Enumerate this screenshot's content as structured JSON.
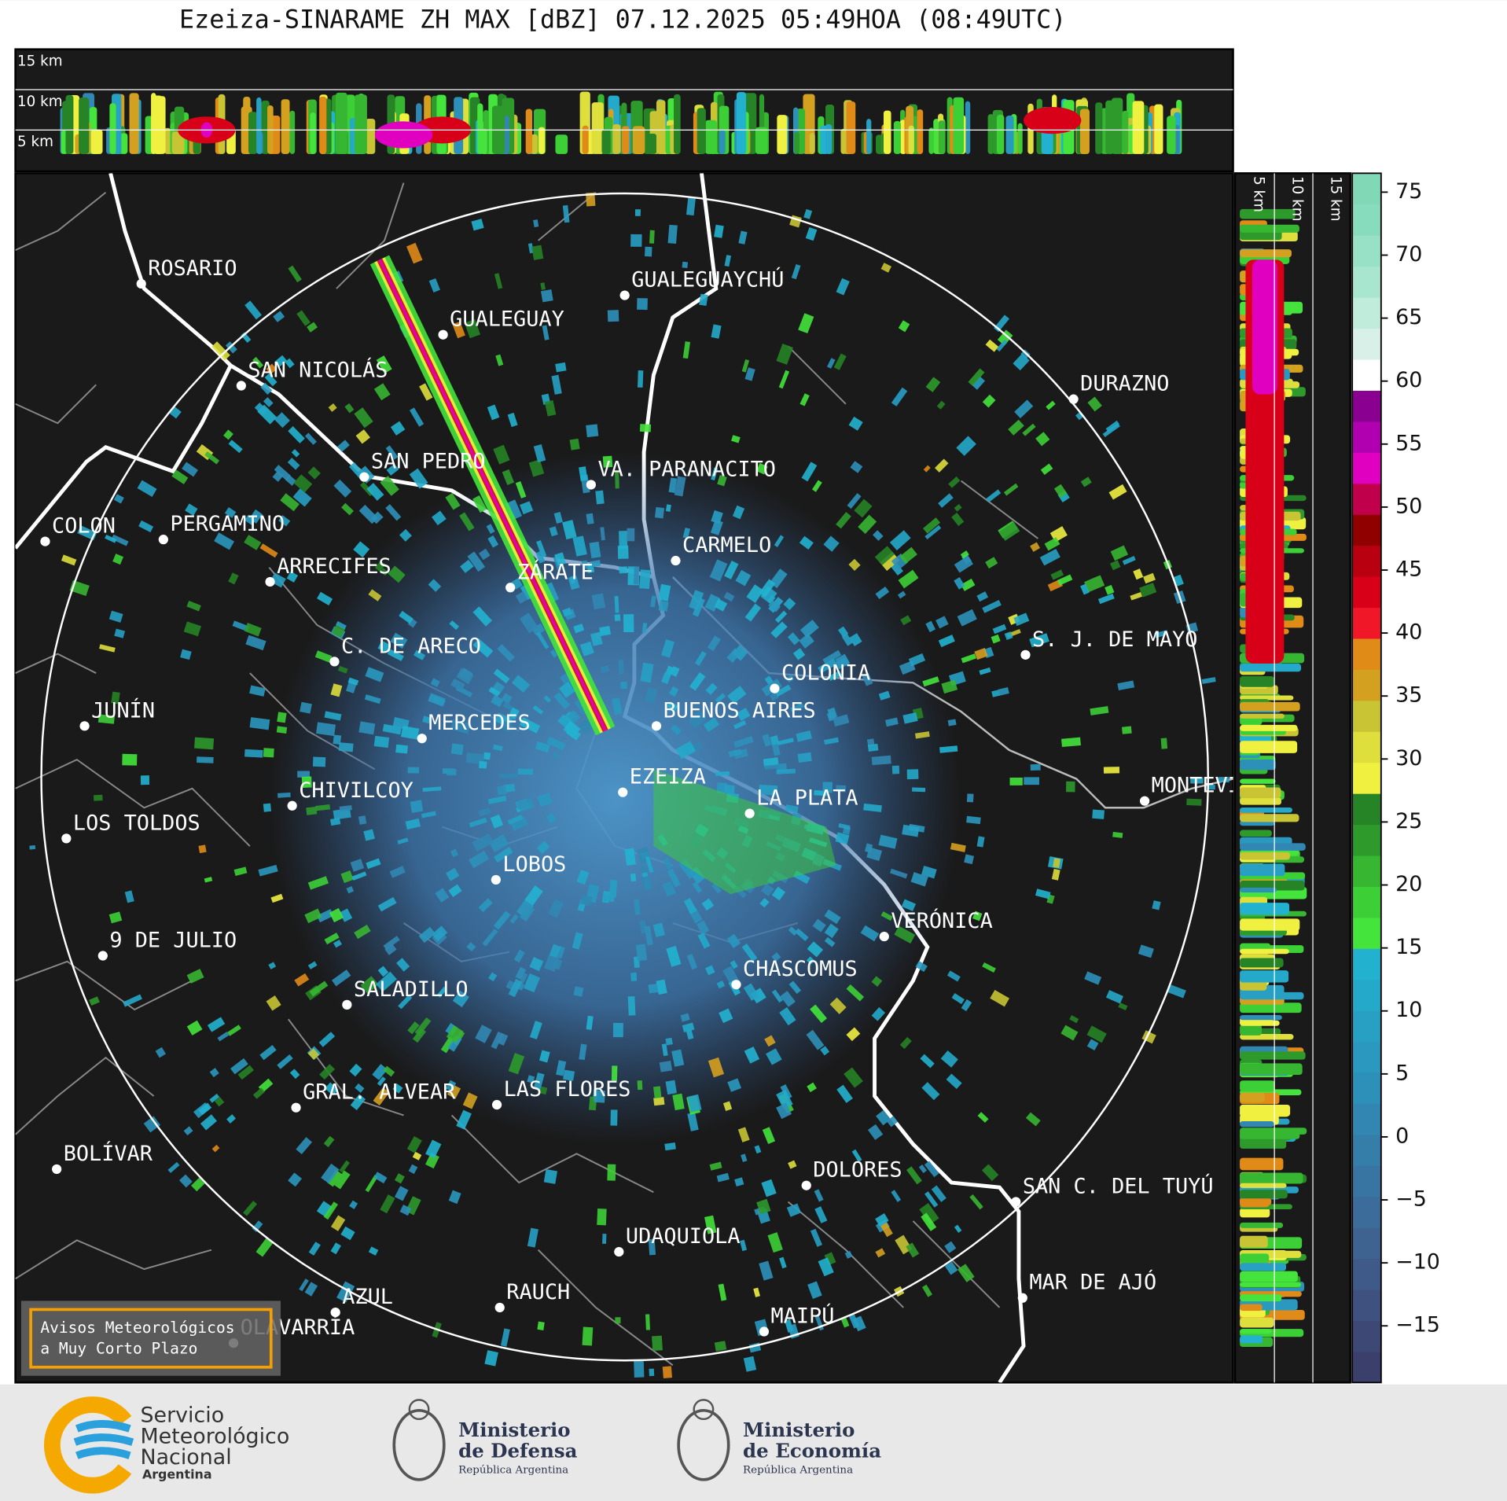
{
  "title": "Ezeiza-SINARAME ZH MAX [dBZ] 07.12.2025 05:49HOA (08:49UTC)",
  "top_section": {
    "heights": [
      "15 km",
      "10 km",
      "5 km"
    ]
  },
  "side_section": {
    "heights": [
      "5 km",
      "10 km",
      "15 km"
    ]
  },
  "cities": [
    "ROSARIO",
    "GUALEGUAYCHÚ",
    "GUALEGUAY",
    "SAN NICOLÁS",
    "DURAZNO",
    "SAN PEDRO",
    "VA. PARANACITO",
    "COLON",
    "PERGAMINO",
    "CARMELO",
    "ARRECIFES",
    "ZÁRATE",
    "S. J. DE MAYO",
    "C. DE ARECO",
    "COLONIA",
    "BUENOS AIRES",
    "JUNÍN",
    "MERCEDES",
    "MONTEVIDEO",
    "EZEIZA",
    "LA PLATA",
    "CHIVILCOY",
    "LOS TOLDOS",
    "LOBOS",
    "VERÓNICA",
    "9 DE JULIO",
    "CHASCOMUS",
    "SALADILLO",
    "GRAL. ALVEAR",
    "LAS FLORES",
    "BOLÍVAR",
    "DOLORES",
    "SAN C. DEL TUYÚ",
    "UDAQUIOLA",
    "MAR DE AJÓ",
    "AZUL",
    "RAUCH",
    "OLAVARRÍA",
    "MAIPÚ"
  ],
  "warning_box": [
    "Avisos Meteorológicos",
    "a Muy Corto Plazo"
  ],
  "colorbar": {
    "lim": [
      -19.5,
      76.5
    ],
    "ticks": [
      {
        "value": -15,
        "label": "−15"
      },
      {
        "value": -10,
        "label": "−10"
      },
      {
        "value": -5,
        "label": "−5"
      },
      0,
      5,
      10,
      15,
      20,
      25,
      30,
      35,
      40,
      45,
      50,
      55,
      60,
      65,
      70,
      75
    ],
    "colors": [
      "#3a3f6b",
      "#3d4875",
      "#3f517f",
      "#3f5a88",
      "#3e6391",
      "#3c6c9a",
      "#3975a2",
      "#357eaa",
      "#3187b2",
      "#2d90b9",
      "#2a98bf",
      "#27a0c4",
      "#24a9ca",
      "#22b2d0",
      "#44e43c",
      "#3ccf36",
      "#37b632",
      "#2e9a2c",
      "#268326",
      "#f0f040",
      "#dede3c",
      "#c8c433",
      "#d4a020",
      "#e08a18",
      "#f01828",
      "#d80018",
      "#b80010",
      "#900000",
      "#c0004a",
      "#e000c0",
      "#b000b0",
      "#8a0090",
      "#ffffff",
      "#d8f0e8",
      "#c0ecdc",
      "#a8e6d0",
      "#98e0c6",
      "#88dcbe",
      "#80d8b6"
    ]
  },
  "logos": {
    "smn": [
      "Servicio",
      "Meteorológico",
      "Nacional",
      "Argentina"
    ],
    "defensa": [
      "Ministerio",
      "de Defensa",
      "República Argentina"
    ],
    "economia": [
      "Ministerio",
      "de Economía",
      "República Argentina"
    ]
  }
}
